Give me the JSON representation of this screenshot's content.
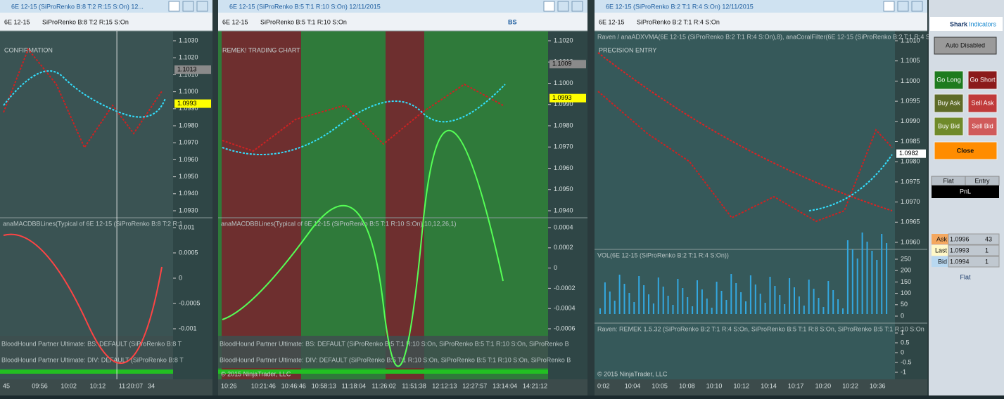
{
  "windows": [
    {
      "title": "6E 12-15 (SiProRenko B:8 T:2 R:15 S:On)  12...",
      "instrument": "6E 12-15",
      "bar_type": "SiProRenko B:8 T:2 R:15 S:On",
      "chart_label": "CONFIRMATION",
      "panes": [
        {
          "ticks": [
            "1.1030",
            "1.1020",
            "1.1010",
            "1.1000",
            "1.0990",
            "1.0980",
            "1.0970",
            "1.0960",
            "1.0950",
            "1.0940",
            "1.0930"
          ]
        },
        {
          "label": "anaMACDBBLines(Typical of 6E 12-15 (SiProRenko B:8 T:2 R:1",
          "ticks": [
            "0.001",
            "0.0005",
            "0",
            "-0.0005",
            "-0.001"
          ]
        }
      ],
      "flags": [
        {
          "text": "1.1013",
          "color": "#8a8a8a"
        },
        {
          "text": "1.0993",
          "color": "#ffff00"
        }
      ],
      "strips": [
        "BloodHound Partner Ultimate: BS: DEFAULT (SiProRenko B:8 T",
        "BloodHound Partner Ultimate: DIV: DEFAULT (SiProRenko B:8 T"
      ],
      "times": [
        "45",
        "09:56",
        "10:02",
        "10:12",
        "11:20:07",
        "34"
      ]
    },
    {
      "title": "6E 12-15 (SiProRenko B:5 T:1 R:10 S:On)  12/11/2015",
      "instrument": "6E 12-15",
      "bar_type": "SiProRenko B:5 T:1 R:10 S:On",
      "tool": "BS",
      "chart_label": "REMEK! TRADING CHART",
      "panes": [
        {
          "ticks": [
            "1.1020",
            "1.1010",
            "1.1000",
            "1.0990",
            "1.0980",
            "1.0970",
            "1.0960",
            "1.0950",
            "1.0940"
          ]
        },
        {
          "label": "anaMACDBBLines(Typical of 6E 12-15 (SiProRenko B:5 T:1 R:10 S:On),10,12,26,1)",
          "ticks": [
            "0.0004",
            "0.0002",
            "0",
            "-0.0002",
            "-0.0004",
            "-0.0006"
          ]
        }
      ],
      "flags": [
        {
          "text": "1.1009",
          "color": "#8a8a8a"
        },
        {
          "text": "1.0993",
          "color": "#ffff00"
        }
      ],
      "strips": [
        "BloodHound Partner Ultimate: BS: DEFAULT (SiProRenko B:5 T:1 R:10 S:On, SiProRenko B:5 T:1 R:10 S:On, SiProRenko B",
        "BloodHound Partner Ultimate: DIV: DEFAULT (SiProRenko B:5 T:1 R:10 S:On, SiProRenko B:5 T:1 R:10 S:On, SiProRenko B"
      ],
      "copyright": "© 2015 NinjaTrader, LLC",
      "times": [
        "10:26",
        "10:21:46",
        "10:46:46",
        "10:58:13",
        "11:18:04",
        "11:26:02",
        "11:51:38",
        "12:12:13",
        "12:27:57",
        "13:14:04",
        "14:21:12"
      ]
    },
    {
      "title": "6E 12-15 (SiProRenko B:2 T:1 R:4 S:On)  12/11/2015",
      "instrument": "6E 12-15",
      "bar_type": "SiProRenko B:2 T:1 R:4 S:On",
      "chart_label": "PRECISION ENTRY",
      "panes": [
        {
          "label": "Raven / anaADXVMA(6E 12-15 (SiProRenko B:2 T:1 R:4 S:On),8), anaCoralFilter(6E 12-15 (SiProRenko B:2 T:1 R:4 S",
          "ticks": [
            "1.1010",
            "1.1005",
            "1.1000",
            "1.0995",
            "1.0990",
            "1.0985",
            "1.0980",
            "1.0975",
            "1.0970",
            "1.0965",
            "1.0960"
          ]
        },
        {
          "label": "VOL(6E 12-15 (SiProRenko B:2 T:1 R:4 S:On))",
          "ticks": [
            "250",
            "200",
            "150",
            "100",
            "50",
            "0"
          ]
        },
        {
          "label": "Raven: REMEK 1.5.32 (SiProRenko B:2 T:1 R:4 S:On, SiProRenko B:5 T:1 R:8 S:On, SiProRenko B:5 T:1 R:10 S:On",
          "ticks": [
            "1",
            "0.5",
            "0",
            "-0.5",
            "-1"
          ]
        }
      ],
      "flags": [
        {
          "text": "1.0982",
          "color": "#ffffff"
        }
      ],
      "copyright": "© 2015 NinjaTrader, LLC",
      "times": [
        "0:02",
        "10:04",
        "10:05",
        "10:08",
        "10:10",
        "10:12",
        "10:14",
        "10:17",
        "10:20",
        "10:22",
        "10:36"
      ]
    }
  ],
  "side_panel": {
    "brand": "Shark",
    "brand_suffix": "Indicators",
    "auto": "Auto Disabled",
    "buttons": [
      {
        "text": "Go Long",
        "color": "#1e7b1e"
      },
      {
        "text": "Go Short",
        "color": "#8b1a1a"
      },
      {
        "text": "Buy Ask",
        "color": "#5e6b28"
      },
      {
        "text": "Sell Ask",
        "color": "#c03a3a"
      },
      {
        "text": "Buy Bid",
        "color": "#6f8a2a"
      },
      {
        "text": "Sell Bid",
        "color": "#d05a5a"
      }
    ],
    "close": "Close",
    "position_header": [
      "Flat",
      "Entry"
    ],
    "pnl": "PnL",
    "quotes": [
      [
        "Ask",
        "1.0996",
        "43"
      ],
      [
        "Last",
        "1.0993",
        "1"
      ],
      [
        "Bid",
        "1.0994",
        "1"
      ]
    ],
    "status": "Flat"
  }
}
